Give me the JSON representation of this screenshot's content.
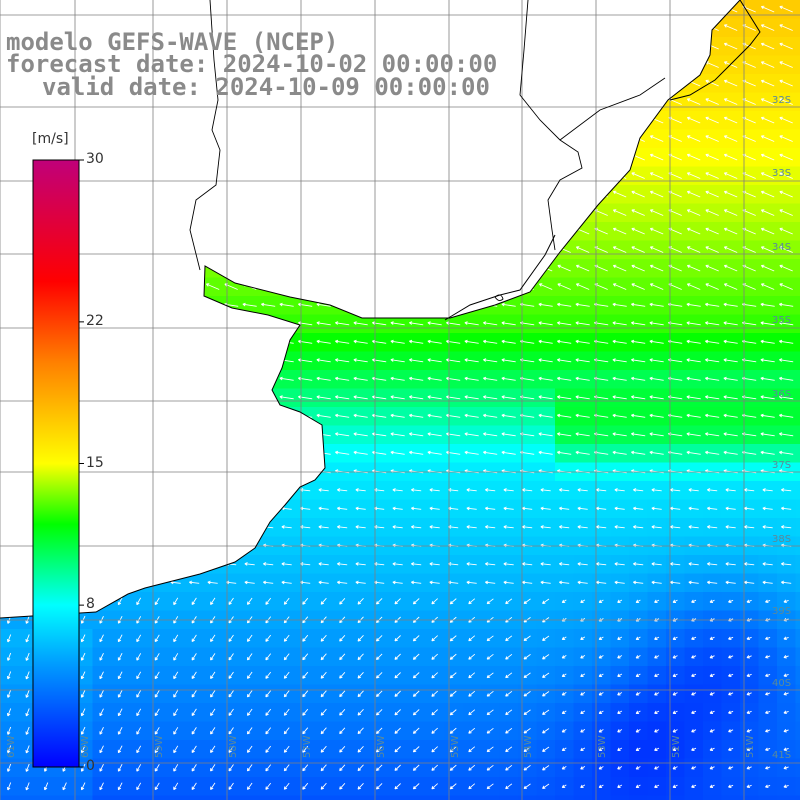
{
  "title": {
    "model": "modelo GEFS-WAVE (NCEP)",
    "forecast": "forecast date: 2024-10-02 00:00:00",
    "valid": "valid date: 2024-10-09 00:00:00"
  },
  "colorbar": {
    "unit": "[m/s]",
    "ticks": [
      "30",
      "22",
      "15",
      "8",
      "0"
    ],
    "tick_values": [
      30,
      22,
      15,
      8,
      0
    ],
    "range": [
      0,
      30
    ],
    "stops": [
      {
        "v": 0,
        "c": "#0000ff"
      },
      {
        "v": 5,
        "c": "#0099ff"
      },
      {
        "v": 8,
        "c": "#00ffff"
      },
      {
        "v": 12,
        "c": "#00ff00"
      },
      {
        "v": 15,
        "c": "#ffff00"
      },
      {
        "v": 20,
        "c": "#ff8000"
      },
      {
        "v": 24,
        "c": "#ff0000"
      },
      {
        "v": 30,
        "c": "#c0007a"
      }
    ]
  },
  "map": {
    "lat_labels": [
      "32S",
      "33S",
      "34S",
      "35S",
      "36S",
      "37S",
      "38S",
      "39S",
      "40S",
      "41S"
    ],
    "lon_labels": [
      "61W",
      "60W",
      "59W",
      "58W",
      "57W",
      "56W",
      "55W",
      "54W",
      "53W",
      "52W",
      "51W"
    ]
  },
  "colors": {
    "land": "#ffffff",
    "coast": "#000000",
    "grid": "#7f7f7f",
    "arrow": "#ffffff",
    "title": "#8a8a8a"
  }
}
